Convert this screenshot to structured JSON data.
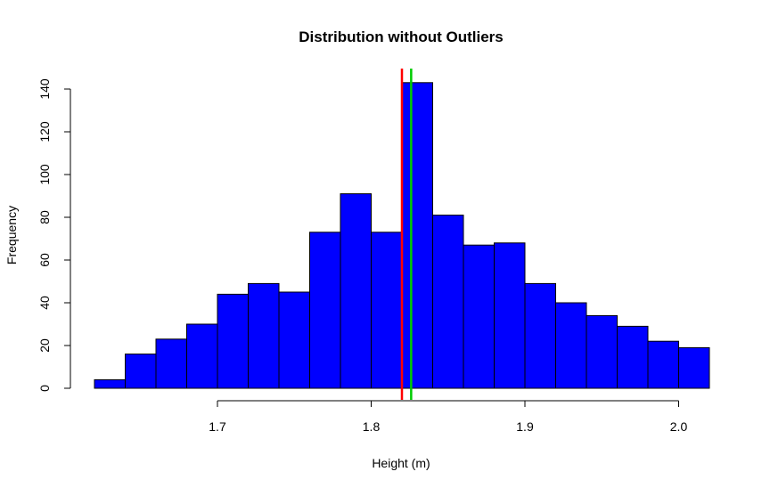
{
  "chart_data": {
    "type": "bar",
    "title": "Distribution without Outliers",
    "xlabel": "Height (m)",
    "ylabel": "Frequency",
    "bar_color": "#0000ff",
    "bin_width": 0.02,
    "bins": [
      {
        "x_start": 1.62,
        "x_end": 1.64,
        "value": 4
      },
      {
        "x_start": 1.64,
        "x_end": 1.66,
        "value": 16
      },
      {
        "x_start": 1.66,
        "x_end": 1.68,
        "value": 23
      },
      {
        "x_start": 1.68,
        "x_end": 1.7,
        "value": 30
      },
      {
        "x_start": 1.7,
        "x_end": 1.72,
        "value": 44
      },
      {
        "x_start": 1.72,
        "x_end": 1.74,
        "value": 49
      },
      {
        "x_start": 1.74,
        "x_end": 1.76,
        "value": 45
      },
      {
        "x_start": 1.76,
        "x_end": 1.78,
        "value": 73
      },
      {
        "x_start": 1.78,
        "x_end": 1.8,
        "value": 91
      },
      {
        "x_start": 1.8,
        "x_end": 1.82,
        "value": 73
      },
      {
        "x_start": 1.82,
        "x_end": 1.84,
        "value": 143
      },
      {
        "x_start": 1.84,
        "x_end": 1.86,
        "value": 81
      },
      {
        "x_start": 1.86,
        "x_end": 1.88,
        "value": 67
      },
      {
        "x_start": 1.88,
        "x_end": 1.9,
        "value": 68
      },
      {
        "x_start": 1.9,
        "x_end": 1.92,
        "value": 49
      },
      {
        "x_start": 1.92,
        "x_end": 1.94,
        "value": 40
      },
      {
        "x_start": 1.94,
        "x_end": 1.96,
        "value": 34
      },
      {
        "x_start": 1.96,
        "x_end": 1.98,
        "value": 29
      },
      {
        "x_start": 1.98,
        "x_end": 2.0,
        "value": 22
      },
      {
        "x_start": 2.0,
        "x_end": 2.02,
        "value": 19
      }
    ],
    "vlines": [
      {
        "x": 1.82,
        "color": "#ff0000"
      },
      {
        "x": 1.826,
        "color": "#00cc00"
      }
    ],
    "xlim": [
      1.62,
      2.02
    ],
    "ylim": [
      0,
      145
    ],
    "x_ticks": [
      {
        "value": 1.7,
        "label": "1.7"
      },
      {
        "value": 1.8,
        "label": "1.8"
      },
      {
        "value": 1.9,
        "label": "1.9"
      },
      {
        "value": 2.0,
        "label": "2.0"
      }
    ],
    "y_ticks": [
      {
        "value": 0,
        "label": "0"
      },
      {
        "value": 20,
        "label": "20"
      },
      {
        "value": 40,
        "label": "40"
      },
      {
        "value": 60,
        "label": "60"
      },
      {
        "value": 80,
        "label": "80"
      },
      {
        "value": 100,
        "label": "100"
      },
      {
        "value": 120,
        "label": "120"
      },
      {
        "value": 140,
        "label": "140"
      }
    ],
    "grid": false,
    "legend": "none"
  }
}
